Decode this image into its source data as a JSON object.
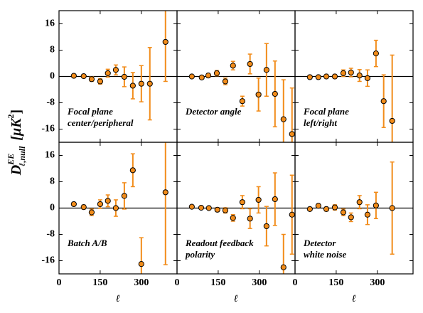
{
  "ylabel": {
    "base": "D",
    "sup": "EE",
    "sub": "ℓ,null",
    "unit": "[μK",
    "unit_sup": "2",
    "close": "]"
  },
  "xlabel": "ℓ",
  "chart_data": [
    {
      "type": "scatter",
      "label": [
        "Focal plane",
        "center/peripheral"
      ],
      "color": "#f28c1a",
      "x": [
        54,
        90,
        119,
        150,
        178,
        207,
        238,
        269,
        300,
        331,
        388
      ],
      "values": [
        0.2,
        0.1,
        -0.8,
        -1.5,
        1,
        2,
        -0.1,
        -2.8,
        -2.2,
        -2.2,
        10.5
      ],
      "errors": [
        0.3,
        0.5,
        0.7,
        0.8,
        1.2,
        1.5,
        3,
        4,
        5.5,
        11,
        12
      ],
      "xlim": [
        0,
        430
      ],
      "ylim": [
        -20,
        20
      ],
      "xticks": [
        0,
        150,
        300
      ],
      "yticks": [
        16,
        8,
        0,
        -8,
        -16
      ]
    },
    {
      "type": "scatter",
      "label": [
        "Detector angle"
      ],
      "color": "#f28c1a",
      "x": [
        54,
        90,
        114,
        145,
        176,
        204,
        238,
        266,
        297,
        326,
        357,
        388,
        419
      ],
      "values": [
        0,
        -0.3,
        0.3,
        1,
        -1.5,
        3.3,
        -7.5,
        3.8,
        -5.5,
        2,
        -5.3,
        -13,
        -17.5
      ],
      "errors": [
        0.3,
        0.5,
        0.6,
        0.8,
        1,
        1.3,
        1.5,
        3,
        5,
        8,
        10,
        12,
        14
      ],
      "xlim": [
        0,
        430
      ],
      "ylim": [
        -20,
        20
      ],
      "xticks": [
        0,
        150,
        300
      ],
      "yticks": [
        16,
        8,
        0,
        -8,
        -16
      ]
    },
    {
      "type": "scatter",
      "label": [
        "Focal plane",
        "left/right"
      ],
      "color": "#f28c1a",
      "x": [
        54,
        85,
        114,
        145,
        176,
        204,
        235,
        264,
        295,
        323,
        354
      ],
      "values": [
        -0.2,
        -0.2,
        0,
        0,
        1,
        1.2,
        0.3,
        -0.5,
        7,
        -7.5,
        -13.5
      ],
      "errors": [
        0.3,
        0.4,
        0.5,
        0.6,
        1,
        1.3,
        1.8,
        2.5,
        4,
        8,
        20
      ],
      "xlim": [
        0,
        430
      ],
      "ylim": [
        -20,
        20
      ],
      "xticks": [
        0,
        150,
        300
      ],
      "yticks": [
        16,
        8,
        0,
        -8,
        -16
      ]
    },
    {
      "type": "scatter",
      "label": [
        "Batch A/B"
      ],
      "color": "#f28c1a",
      "x": [
        54,
        90,
        119,
        150,
        178,
        207,
        238,
        269,
        300,
        388
      ],
      "values": [
        1.2,
        0.3,
        -1.3,
        1.2,
        2.2,
        0,
        3.7,
        11.5,
        -17,
        4.8
      ],
      "errors": [
        0.4,
        0.6,
        1,
        1.3,
        1.8,
        2.5,
        4,
        5,
        8,
        22
      ],
      "xlim": [
        0,
        430
      ],
      "ylim": [
        -20,
        20
      ],
      "xticks": [
        0,
        150,
        300
      ],
      "yticks": [
        16,
        8,
        0,
        -8,
        -16
      ]
    },
    {
      "type": "scatter",
      "label": [
        "Readout feedback",
        "polarity"
      ],
      "color": "#f28c1a",
      "x": [
        54,
        88,
        116,
        147,
        176,
        204,
        238,
        266,
        297,
        326,
        357,
        388,
        419
      ],
      "values": [
        0.4,
        0.1,
        0,
        -0.5,
        -0.7,
        -3,
        1.8,
        -3.2,
        2.5,
        -5.5,
        2.7,
        -18,
        -2
      ],
      "errors": [
        0.2,
        0.3,
        0.4,
        0.6,
        0.8,
        1,
        2,
        3,
        4,
        6,
        8,
        10,
        12
      ],
      "xlim": [
        0,
        430
      ],
      "ylim": [
        -20,
        20
      ],
      "xticks": [
        0,
        150,
        300
      ],
      "yticks": [
        16,
        8,
        0,
        -8,
        -16
      ]
    },
    {
      "type": "scatter",
      "label": [
        "Detector",
        "white noise"
      ],
      "color": "#f28c1a",
      "x": [
        54,
        85,
        114,
        145,
        176,
        204,
        235,
        264,
        295,
        354
      ],
      "values": [
        -0.3,
        0.7,
        -0.3,
        0.2,
        -1.3,
        -2.8,
        1.8,
        -2,
        0.8,
        0
      ],
      "errors": [
        0.3,
        0.5,
        0.6,
        0.8,
        1,
        1.3,
        2,
        3,
        4,
        14
      ],
      "xlim": [
        0,
        430
      ],
      "ylim": [
        -20,
        20
      ],
      "xticks": [
        0,
        150,
        300
      ],
      "yticks": [
        16,
        8,
        0,
        -8,
        -16
      ]
    }
  ]
}
